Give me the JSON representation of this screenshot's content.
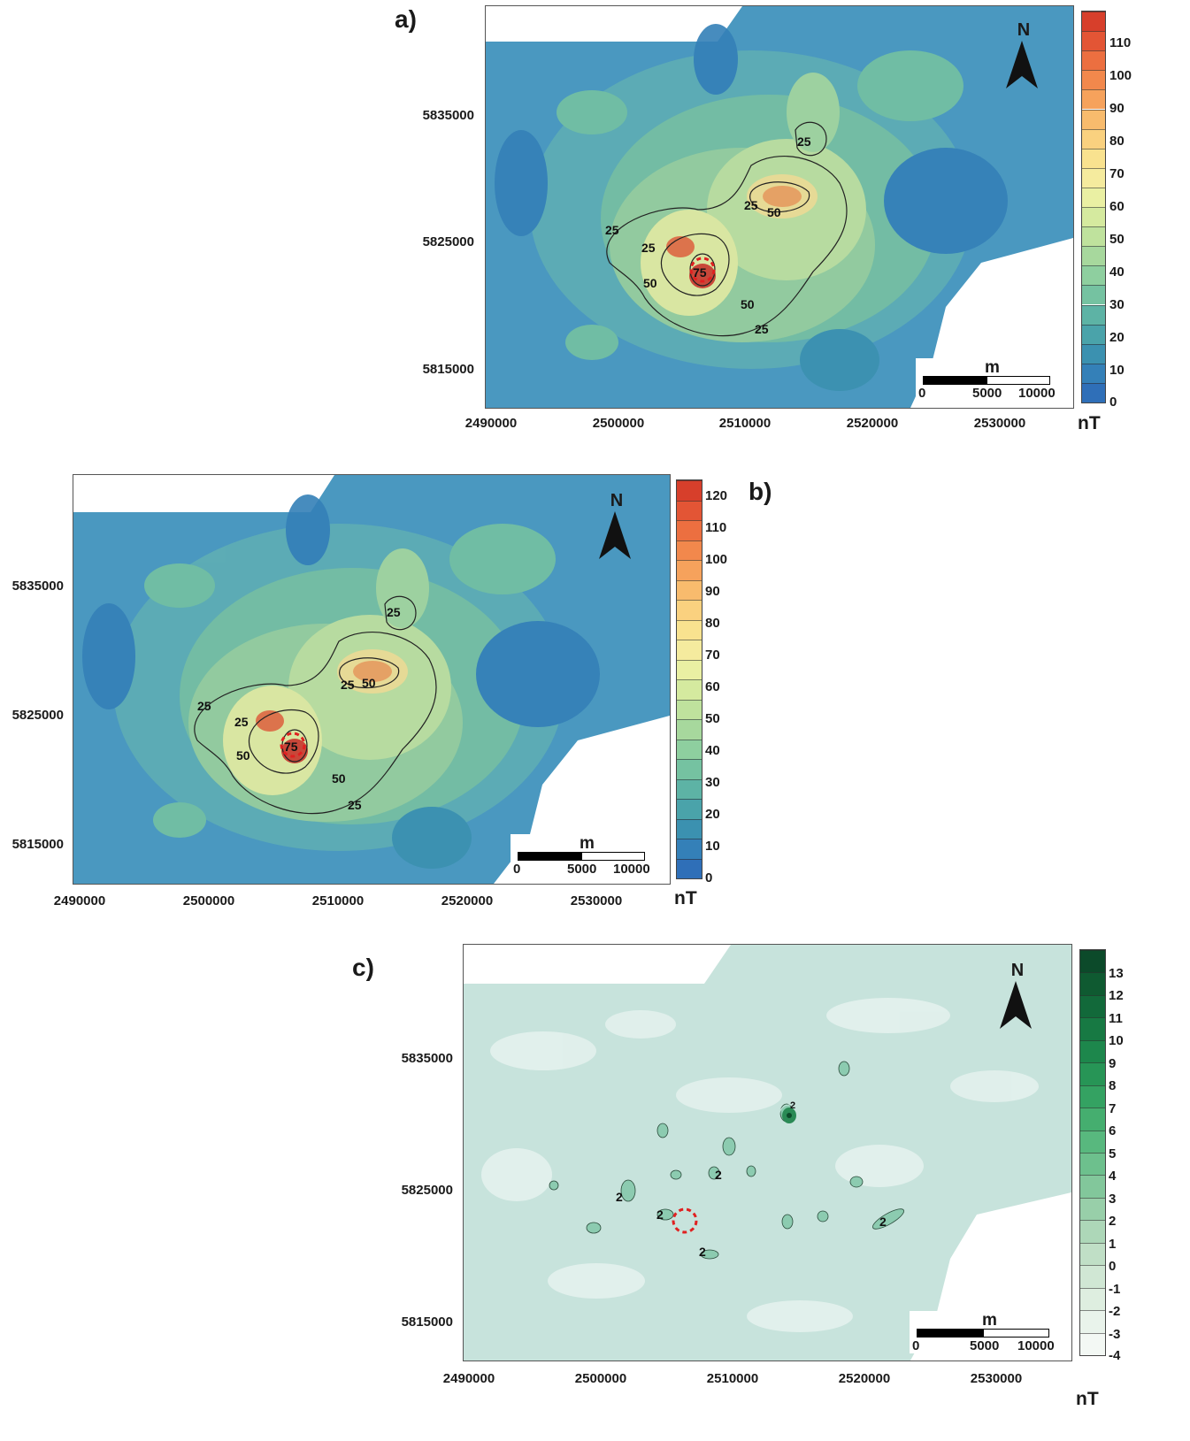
{
  "panels": [
    {
      "label": "a)",
      "x_ticks": [
        "2490000",
        "2500000",
        "2510000",
        "2520000",
        "2530000"
      ],
      "y_ticks": [
        "5835000",
        "5825000",
        "5815000"
      ],
      "colorbar": {
        "labels": [
          "110",
          "100",
          "90",
          "80",
          "70",
          "60",
          "50",
          "40",
          "30",
          "20",
          "10",
          "0"
        ],
        "unit": "nT",
        "colors": [
          "#d73f2b",
          "#e35535",
          "#ec6f40",
          "#f2884c",
          "#f6a25c",
          "#f8bb6d",
          "#fad17f",
          "#f9e28f",
          "#f5eb9e",
          "#eaf0a3",
          "#d5ea9f",
          "#bfe29d",
          "#a7d89d",
          "#8ecf9f",
          "#75c2a1",
          "#5db3a5",
          "#4aa3aa",
          "#3b91b0",
          "#3480b8",
          "#2f6fb8"
        ]
      },
      "contour_labels": [
        "25",
        "25",
        "50",
        "25",
        "25",
        "50",
        "75",
        "50",
        "25"
      ],
      "north": "N",
      "scalebar": {
        "unit": "m",
        "labels": [
          "0",
          "5000",
          "10000"
        ]
      }
    },
    {
      "label": "b)",
      "x_ticks": [
        "2490000",
        "2500000",
        "2510000",
        "2520000",
        "2530000"
      ],
      "y_ticks": [
        "5835000",
        "5825000",
        "5815000"
      ],
      "colorbar": {
        "labels": [
          "120",
          "110",
          "100",
          "90",
          "80",
          "70",
          "60",
          "50",
          "40",
          "30",
          "20",
          "10",
          "0"
        ],
        "unit": "nT",
        "colors": [
          "#d73f2b",
          "#e35535",
          "#ec6f40",
          "#f2884c",
          "#f6a25c",
          "#f8bb6d",
          "#fad17f",
          "#f9e28f",
          "#f5eb9e",
          "#eaf0a3",
          "#d5ea9f",
          "#bfe29d",
          "#a7d89d",
          "#8ecf9f",
          "#75c2a1",
          "#5db3a5",
          "#4aa3aa",
          "#3b91b0",
          "#3480b8",
          "#2f6fb8"
        ]
      },
      "contour_labels": [
        "25",
        "25",
        "50",
        "25",
        "25",
        "50",
        "75",
        "50",
        "25"
      ],
      "north": "N",
      "scalebar": {
        "unit": "m",
        "labels": [
          "0",
          "5000",
          "10000"
        ]
      }
    },
    {
      "label": "c)",
      "x_ticks": [
        "2490000",
        "2500000",
        "2510000",
        "2520000",
        "2530000"
      ],
      "y_ticks": [
        "5835000",
        "5825000",
        "5815000"
      ],
      "colorbar": {
        "labels": [
          "13",
          "12",
          "11",
          "10",
          "9",
          "8",
          "7",
          "6",
          "5",
          "4",
          "3",
          "2",
          "1",
          "0",
          "-1",
          "-2",
          "-3",
          "-4"
        ],
        "unit": "nT",
        "colors": [
          "#0c4a2a",
          "#0f5a31",
          "#12693a",
          "#177943",
          "#1d874c",
          "#279556",
          "#34a262",
          "#45ae6f",
          "#58b87e",
          "#6dc08d",
          "#82c79b",
          "#98cfa9",
          "#add7b8",
          "#c0dfc6",
          "#d0e7d4",
          "#deeee0",
          "#e9f3eb",
          "#f3f8f4"
        ]
      },
      "contour_labels": [
        "2",
        "2",
        "2",
        "2",
        "2",
        "2"
      ],
      "north": "N",
      "scalebar": {
        "unit": "m",
        "labels": [
          "0",
          "5000",
          "10000"
        ]
      }
    }
  ]
}
